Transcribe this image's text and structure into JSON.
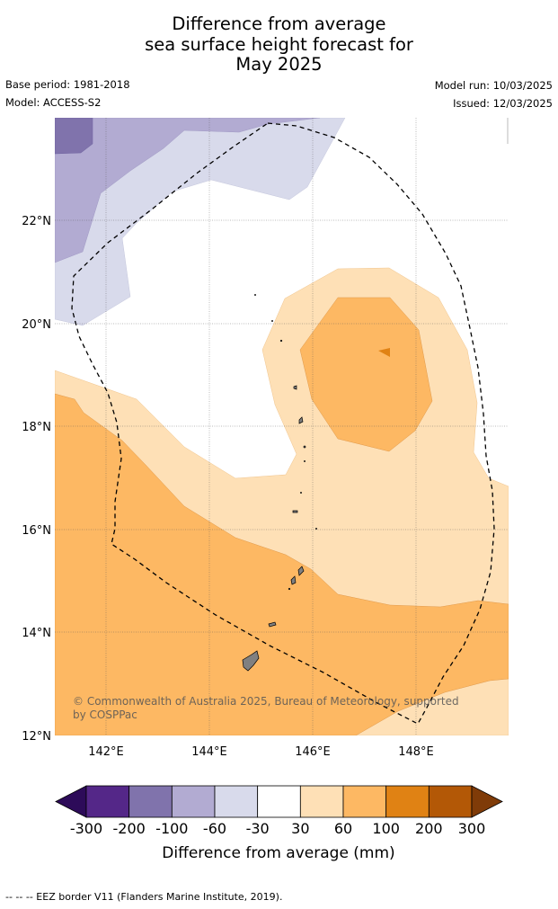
{
  "title": {
    "line1": "Difference from average",
    "line2": "sea surface height forecast for",
    "line3": "May 2025"
  },
  "meta": {
    "base_period": "Base period: 1981-2018",
    "model": "Model: ACCESS-S2",
    "model_run": "Model run: 10/03/2025",
    "issued": "Issued: 12/03/2025"
  },
  "map": {
    "lat_labels": [
      "22°N",
      "20°N",
      "18°N",
      "16°N",
      "14°N",
      "12°N"
    ],
    "lon_labels": [
      "142°E",
      "144°E",
      "146°E",
      "148°E"
    ],
    "copyright_line1": "© Commonwealth of Australia 2025, Bureau of Meteorology, supported",
    "copyright_line2": "by COSPPac",
    "grid": true
  },
  "colorbar": {
    "title": "Difference from average (mm)",
    "ticks": [
      "-300",
      "-200",
      "-100",
      "-60",
      "-30",
      "30",
      "60",
      "100",
      "200",
      "300"
    ],
    "colors": [
      "#2d0b59",
      "#542788",
      "#8073ac",
      "#b2abd2",
      "#d8daeb",
      "#ffffff",
      "#fee0b6",
      "#fdb863",
      "#e08214",
      "#b35806",
      "#7f3b08"
    ]
  },
  "legend": {
    "eez_text": "--  --  -- EEZ border V11 (Flanders Marine Institute, 2019)."
  }
}
